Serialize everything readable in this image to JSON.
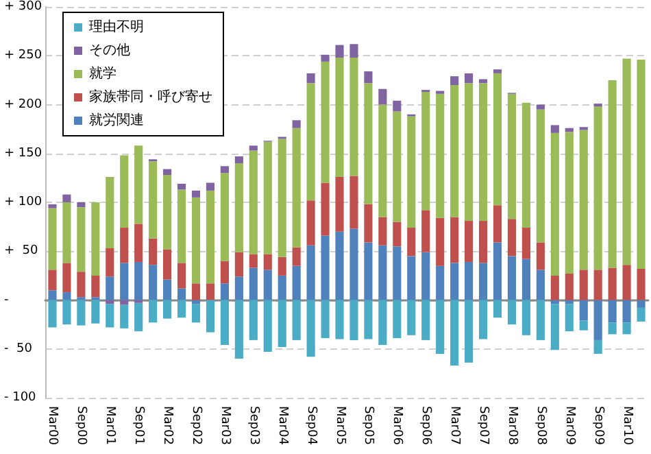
{
  "chart_data": {
    "type": "bar",
    "stacked": true,
    "categories": [
      "Mar00",
      null,
      "Sep00",
      null,
      "Mar01",
      null,
      "Sep01",
      null,
      "Mar02",
      null,
      "Sep02",
      null,
      "Mar03",
      null,
      "Sep03",
      null,
      "Mar04",
      null,
      "Sep04",
      null,
      "Mar05",
      null,
      "Sep05",
      null,
      "Mar06",
      null,
      "Sep06",
      null,
      "Mar07",
      null,
      "Sep07",
      null,
      "Mar08",
      null,
      "Sep08",
      null,
      "Mar09",
      null,
      "Sep09",
      null,
      "Mar10",
      null
    ],
    "series": [
      {
        "name": "就労関連",
        "color": "#4f81bd",
        "values": [
          10,
          8,
          3,
          3,
          24,
          38,
          39,
          36,
          21,
          12,
          -4,
          0,
          17,
          24,
          33,
          31,
          25,
          35,
          56,
          66,
          70,
          73,
          59,
          56,
          55,
          45,
          49,
          35,
          38,
          39,
          38,
          59,
          45,
          42,
          31,
          -4,
          -4,
          -21,
          -41,
          -23,
          -23,
          -8
        ]
      },
      {
        "name": "家族帯同・呼び寄せ",
        "color": "#c0504d",
        "values": [
          21,
          30,
          26,
          22,
          29,
          36,
          39,
          27,
          31,
          26,
          17,
          17,
          23,
          25,
          14,
          16,
          19,
          19,
          46,
          54,
          56,
          54,
          39,
          29,
          25,
          29,
          43,
          49,
          47,
          42,
          43,
          38,
          38,
          32,
          28,
          25,
          27,
          31,
          31,
          33,
          36,
          32
        ]
      },
      {
        "name": "就学",
        "color": "#9bbb59",
        "values": [
          63,
          62,
          66,
          75,
          73,
          74,
          80,
          79,
          76,
          75,
          88,
          95,
          90,
          91,
          106,
          115,
          121,
          122,
          120,
          124,
          122,
          121,
          124,
          115,
          113,
          114,
          121,
          127,
          135,
          141,
          141,
          135,
          128,
          128,
          136,
          146,
          145,
          143,
          167,
          192,
          211,
          214
        ]
      },
      {
        "name": "その他",
        "color": "#8064a2",
        "values": [
          4,
          8,
          5,
          null,
          -4,
          -5,
          -3,
          2,
          6,
          6,
          7,
          8,
          7,
          7,
          5,
          1,
          2,
          8,
          10,
          7,
          13,
          14,
          12,
          16,
          11,
          2,
          2,
          3,
          9,
          10,
          4,
          4,
          1,
          null,
          5,
          8,
          4,
          3,
          3,
          null,
          null,
          null
        ]
      },
      {
        "name": "理由不明",
        "color": "#4bacc6",
        "values": [
          -28,
          -25,
          -26,
          -24,
          -24,
          -24,
          -29,
          -23,
          -19,
          -18,
          -19,
          -33,
          -46,
          -60,
          -41,
          -53,
          -48,
          -41,
          -58,
          -39,
          -40,
          -41,
          -40,
          -46,
          -39,
          -36,
          -41,
          -55,
          -67,
          -64,
          -40,
          -18,
          -25,
          -36,
          -41,
          -47,
          -28,
          -10,
          -14,
          -12,
          -12,
          -14
        ]
      }
    ],
    "ylim": [
      -100,
      300
    ],
    "yticks": [
      {
        "value": -100,
        "label": "- 100"
      },
      {
        "value": -50,
        "label": "-  50"
      },
      {
        "value": 0,
        "label": "-"
      },
      {
        "value": 50,
        "label": "+  50"
      },
      {
        "value": 100,
        "label": "+ 100"
      },
      {
        "value": 150,
        "label": "+ 150"
      },
      {
        "value": 200,
        "label": "+ 200"
      },
      {
        "value": 250,
        "label": "+ 250"
      },
      {
        "value": 300,
        "label": "+ 300"
      }
    ],
    "grid": "y",
    "legend": "top left"
  }
}
